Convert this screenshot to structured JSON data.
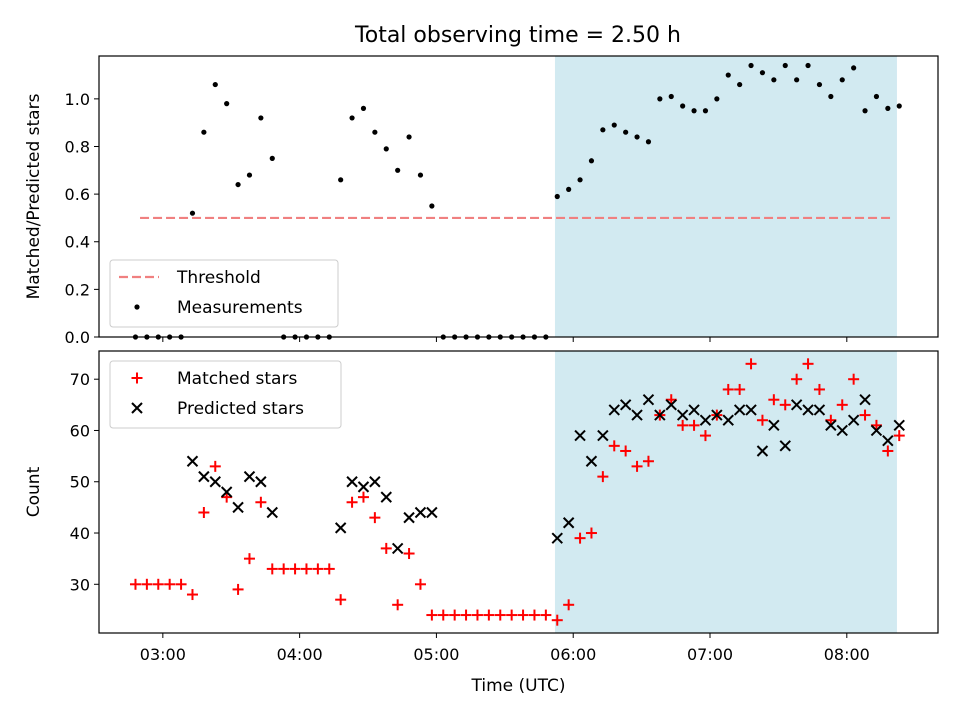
{
  "figure": {
    "title": "Total observing time = 2.50 h"
  },
  "chart_data": [
    {
      "type": "scatter",
      "ylabel": "Matched/Predicted stars",
      "xlim": [
        "02:32",
        "08:40"
      ],
      "ylim": [
        0,
        1.18
      ],
      "yticks": [
        "0.0",
        "0.2",
        "0.4",
        "0.6",
        "0.8",
        "1.0"
      ],
      "ytick_values": [
        0,
        0.2,
        0.4,
        0.6,
        0.8,
        1.0
      ],
      "xtick_labels_visible": false,
      "shaded_region": {
        "x": [
          "05:52",
          "08:22"
        ],
        "color": "#add8e6"
      },
      "legend": {
        "placement": "lower-left",
        "entries": [
          "Threshold",
          "Measurements"
        ]
      },
      "series": [
        {
          "name": "Threshold",
          "kind": "dashed-line",
          "color": "#f08080",
          "x": [
            "02:50",
            "08:20"
          ],
          "y": [
            0.5,
            0.5
          ]
        },
        {
          "name": "Measurements",
          "kind": "dots",
          "color": "#000000",
          "x": [
            "02:48",
            "02:53",
            "02:58",
            "03:03",
            "03:08",
            "03:13",
            "03:18",
            "03:23",
            "03:28",
            "03:33",
            "03:38",
            "03:43",
            "03:48",
            "03:53",
            "03:58",
            "04:03",
            "04:08",
            "04:13",
            "04:18",
            "04:23",
            "04:28",
            "04:33",
            "04:38",
            "04:43",
            "04:48",
            "04:53",
            "04:58",
            "05:03",
            "05:08",
            "05:13",
            "05:18",
            "05:23",
            "05:28",
            "05:33",
            "05:38",
            "05:43",
            "05:48",
            "05:53",
            "05:58",
            "06:03",
            "06:08",
            "06:13",
            "06:18",
            "06:23",
            "06:28",
            "06:33",
            "06:38",
            "06:43",
            "06:48",
            "06:53",
            "06:58",
            "07:03",
            "07:08",
            "07:13",
            "07:18",
            "07:23",
            "07:28",
            "07:33",
            "07:38",
            "07:43",
            "07:48",
            "07:53",
            "07:58",
            "08:03",
            "08:08",
            "08:13",
            "08:18",
            "08:23"
          ],
          "y": [
            0,
            0,
            0,
            0,
            0,
            0.52,
            0.86,
            1.06,
            0.98,
            0.64,
            0.68,
            0.92,
            0.75,
            0,
            0,
            0,
            0,
            0,
            0.66,
            0.92,
            0.96,
            0.86,
            0.79,
            0.7,
            0.84,
            0.68,
            0.55,
            0,
            0,
            0,
            0,
            0,
            0,
            0,
            0,
            0,
            0,
            0.59,
            0.62,
            0.66,
            0.74,
            0.87,
            0.89,
            0.86,
            0.84,
            0.82,
            1.0,
            1.01,
            0.97,
            0.95,
            0.95,
            1.0,
            1.1,
            1.06,
            1.14,
            1.11,
            1.08,
            1.14,
            1.08,
            1.14,
            1.06,
            1.01,
            1.08,
            1.13,
            0.95,
            1.01,
            0.96,
            0.97
          ]
        }
      ]
    },
    {
      "type": "scatter",
      "xlabel": "Time (UTC)",
      "ylabel": "Count",
      "xlim": [
        "02:32",
        "08:40"
      ],
      "ylim": [
        20.5,
        75.5
      ],
      "yticks": [
        "30",
        "40",
        "50",
        "60",
        "70"
      ],
      "ytick_values": [
        30,
        40,
        50,
        60,
        70
      ],
      "xticks": [
        "03:00",
        "04:00",
        "05:00",
        "06:00",
        "07:00",
        "08:00"
      ],
      "shaded_region": {
        "x": [
          "05:52",
          "08:22"
        ],
        "color": "#add8e6"
      },
      "legend": {
        "placement": "top-left",
        "entries": [
          "Matched stars",
          "Predicted stars"
        ]
      },
      "series": [
        {
          "name": "Matched stars",
          "marker": "+",
          "color": "#ff0000",
          "x": [
            "02:48",
            "02:53",
            "02:58",
            "03:03",
            "03:08",
            "03:13",
            "03:18",
            "03:23",
            "03:28",
            "03:33",
            "03:38",
            "03:43",
            "03:48",
            "03:53",
            "03:58",
            "04:03",
            "04:08",
            "04:13",
            "04:18",
            "04:23",
            "04:28",
            "04:33",
            "04:38",
            "04:43",
            "04:48",
            "04:53",
            "04:58",
            "05:03",
            "05:08",
            "05:13",
            "05:18",
            "05:23",
            "05:28",
            "05:33",
            "05:38",
            "05:43",
            "05:48",
            "05:53",
            "05:58",
            "06:03",
            "06:08",
            "06:13",
            "06:18",
            "06:23",
            "06:28",
            "06:33",
            "06:38",
            "06:43",
            "06:48",
            "06:53",
            "06:58",
            "07:03",
            "07:08",
            "07:13",
            "07:18",
            "07:23",
            "07:28",
            "07:33",
            "07:38",
            "07:43",
            "07:48",
            "07:53",
            "07:58",
            "08:03",
            "08:08",
            "08:13",
            "08:18",
            "08:23"
          ],
          "y": [
            30,
            30,
            30,
            30,
            30,
            28,
            44,
            53,
            47,
            29,
            35,
            46,
            33,
            33,
            33,
            33,
            33,
            33,
            27,
            46,
            47,
            43,
            37,
            26,
            36,
            30,
            24,
            24,
            24,
            24,
            24,
            24,
            24,
            24,
            24,
            24,
            24,
            23,
            26,
            39,
            40,
            51,
            57,
            56,
            53,
            54,
            63,
            66,
            61,
            61,
            59,
            63,
            68,
            68,
            73,
            62,
            66,
            65,
            70,
            73,
            68,
            62,
            65,
            70,
            63,
            61,
            56,
            59
          ]
        },
        {
          "name": "Predicted stars",
          "marker": "x",
          "color": "#000000",
          "x": [
            "03:13",
            "03:18",
            "03:23",
            "03:28",
            "03:33",
            "03:38",
            "03:43",
            "03:48",
            "04:18",
            "04:23",
            "04:28",
            "04:33",
            "04:38",
            "04:43",
            "04:48",
            "04:53",
            "04:58",
            "05:53",
            "05:58",
            "06:03",
            "06:08",
            "06:13",
            "06:18",
            "06:23",
            "06:28",
            "06:33",
            "06:38",
            "06:43",
            "06:48",
            "06:53",
            "06:58",
            "07:03",
            "07:08",
            "07:13",
            "07:18",
            "07:23",
            "07:28",
            "07:33",
            "07:38",
            "07:43",
            "07:48",
            "07:53",
            "07:58",
            "08:03",
            "08:08",
            "08:13",
            "08:18",
            "08:23"
          ],
          "y": [
            54,
            51,
            50,
            48,
            45,
            51,
            50,
            44,
            41,
            50,
            49,
            50,
            47,
            37,
            43,
            44,
            44,
            39,
            42,
            59,
            54,
            59,
            64,
            65,
            63,
            66,
            63,
            65,
            63,
            64,
            62,
            63,
            62,
            64,
            64,
            56,
            61,
            57,
            65,
            64,
            64,
            61,
            60,
            62,
            66,
            60,
            58,
            61
          ]
        }
      ]
    }
  ]
}
